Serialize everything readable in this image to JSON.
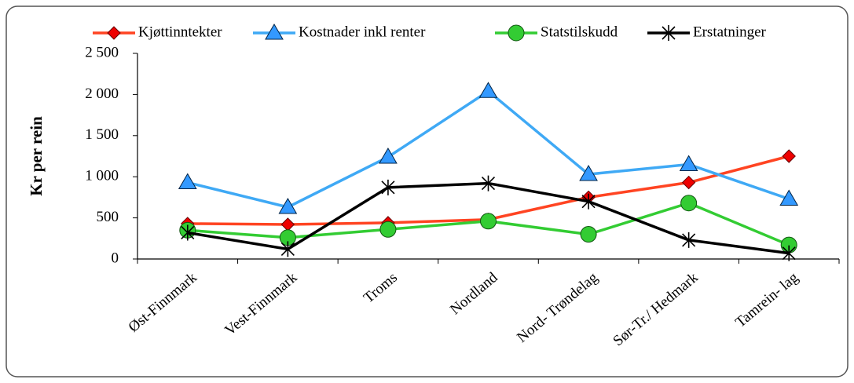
{
  "chart_data": {
    "type": "line",
    "y_label": "Kr per rein",
    "categories": [
      "Øst-Finnmark",
      "Vest-Finnmark",
      "Troms",
      "Nordland",
      "Nord- Trøndelag",
      "Sør-Tr./ Hedmark",
      "Tamrein- lag"
    ],
    "series": [
      {
        "name": "Kjøttinntekter",
        "color": "#ff4422",
        "marker": "diamond",
        "marker_color": "#ee0000",
        "values": [
          430,
          420,
          440,
          480,
          750,
          930,
          1250
        ]
      },
      {
        "name": "Kostnader inkl renter",
        "color": "#3fa9f5",
        "marker": "triangle",
        "marker_color": "#3399ff",
        "values": [
          930,
          630,
          1240,
          2040,
          1030,
          1150,
          730
        ]
      },
      {
        "name": "Statstilskudd",
        "color": "#33cc33",
        "marker": "circle",
        "marker_color": "#33cc33",
        "values": [
          350,
          260,
          360,
          460,
          300,
          680,
          170
        ]
      },
      {
        "name": "Erstatninger",
        "color": "#000000",
        "marker": "star",
        "marker_color": "#000000",
        "values": [
          320,
          120,
          870,
          920,
          700,
          230,
          70
        ]
      }
    ],
    "ylim": [
      0,
      2500
    ],
    "yticks": [
      0,
      500,
      {
        "value": 1000,
        "label": "1 000"
      },
      {
        "value": 1500,
        "label": "1 500"
      },
      {
        "value": 2000,
        "label": "2 000"
      },
      {
        "value": 2500,
        "label": "2 500"
      }
    ],
    "grid": false,
    "legend": "top"
  }
}
